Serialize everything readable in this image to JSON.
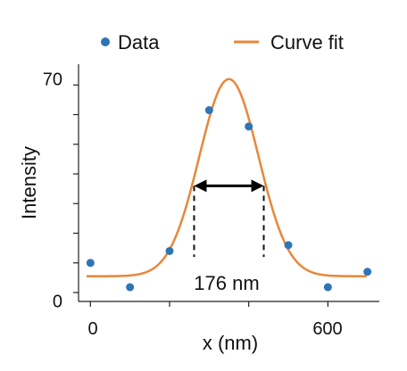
{
  "chart_data": {
    "type": "scatter",
    "xlabel": "x (nm)",
    "ylabel": "Intensity",
    "xlim": [
      -30,
      730
    ],
    "ylim": [
      -3,
      77
    ],
    "x_ticks": [
      0,
      600
    ],
    "y_ticks": [
      0,
      70
    ],
    "legend": {
      "placement": "top",
      "entries": [
        {
          "label": "Data",
          "marker": "dot"
        },
        {
          "label": "Curve fit",
          "marker": "line"
        }
      ]
    },
    "series": [
      {
        "name": "Data",
        "kind": "scatter",
        "color": "#2e75b6",
        "points": [
          {
            "x": 0,
            "y": 10
          },
          {
            "x": 100,
            "y": 1.8
          },
          {
            "x": 200,
            "y": 14
          },
          {
            "x": 300,
            "y": 61.5
          },
          {
            "x": 400,
            "y": 56
          },
          {
            "x": 500,
            "y": 16
          },
          {
            "x": 600,
            "y": 1.8
          },
          {
            "x": 700,
            "y": 7
          }
        ]
      },
      {
        "name": "Curve fit",
        "kind": "line",
        "color": "#e8873a",
        "model": "gaussian",
        "params": {
          "baseline": 5.5,
          "amplitude": 66.5,
          "center": 350,
          "sigma": 75
        }
      }
    ],
    "annotation": {
      "text": "176 nm",
      "fwhm_from": 262,
      "fwhm_to": 438,
      "at_y": 36,
      "guide_bottom_y": 12
    },
    "grid": false
  }
}
